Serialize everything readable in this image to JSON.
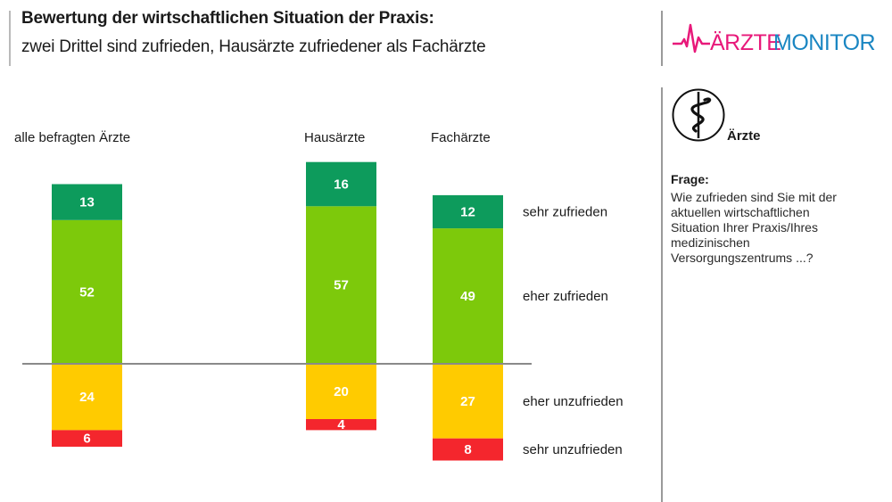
{
  "header": {
    "title": "Bewertung der wirtschaftlichen Situation der Praxis:",
    "subtitle": "zwei Drittel sind zufrieden, Hausärzte zufriedener als Fachärzte"
  },
  "logo": {
    "part1": "ÄRZTE",
    "part2": "MONITOR",
    "colors": {
      "part1": "#e8197a",
      "part2": "#1a86c2"
    }
  },
  "sidebar": {
    "icon": "aesculapian-staff-icon",
    "target_group": "Ärzte",
    "question_label": "Frage:",
    "question_text": "Wie zufrieden sind Sie mit der aktuellen wirtschaftlichen Situation Ihrer Praxis/Ihres medizinischen Versorgungszentrums ...?"
  },
  "chart_data": {
    "type": "bar",
    "subtype": "diverging-stacked",
    "title": "Bewertung der wirtschaftlichen Situation der Praxis:",
    "subtitle": "zwei Drittel sind zufrieden, Hausärzte zufriedener als Fachärzte",
    "unit": "%",
    "categories": [
      "alle befragten Ärzte",
      "Hausärzte",
      "Fachärzte"
    ],
    "series": [
      {
        "name": "sehr zufrieden",
        "direction": "positive",
        "color": "#0d9b5c",
        "values": [
          13,
          16,
          12
        ]
      },
      {
        "name": "eher zufrieden",
        "direction": "positive",
        "color": "#7dc90b",
        "values": [
          52,
          57,
          49
        ]
      },
      {
        "name": "eher unzufrieden",
        "direction": "negative",
        "color": "#ffcb00",
        "values": [
          24,
          20,
          27
        ]
      },
      {
        "name": "sehr unzufrieden",
        "direction": "negative",
        "color": "#f4262d",
        "values": [
          6,
          4,
          8
        ]
      }
    ],
    "legend_placement": "right of last bar",
    "grid": false
  }
}
